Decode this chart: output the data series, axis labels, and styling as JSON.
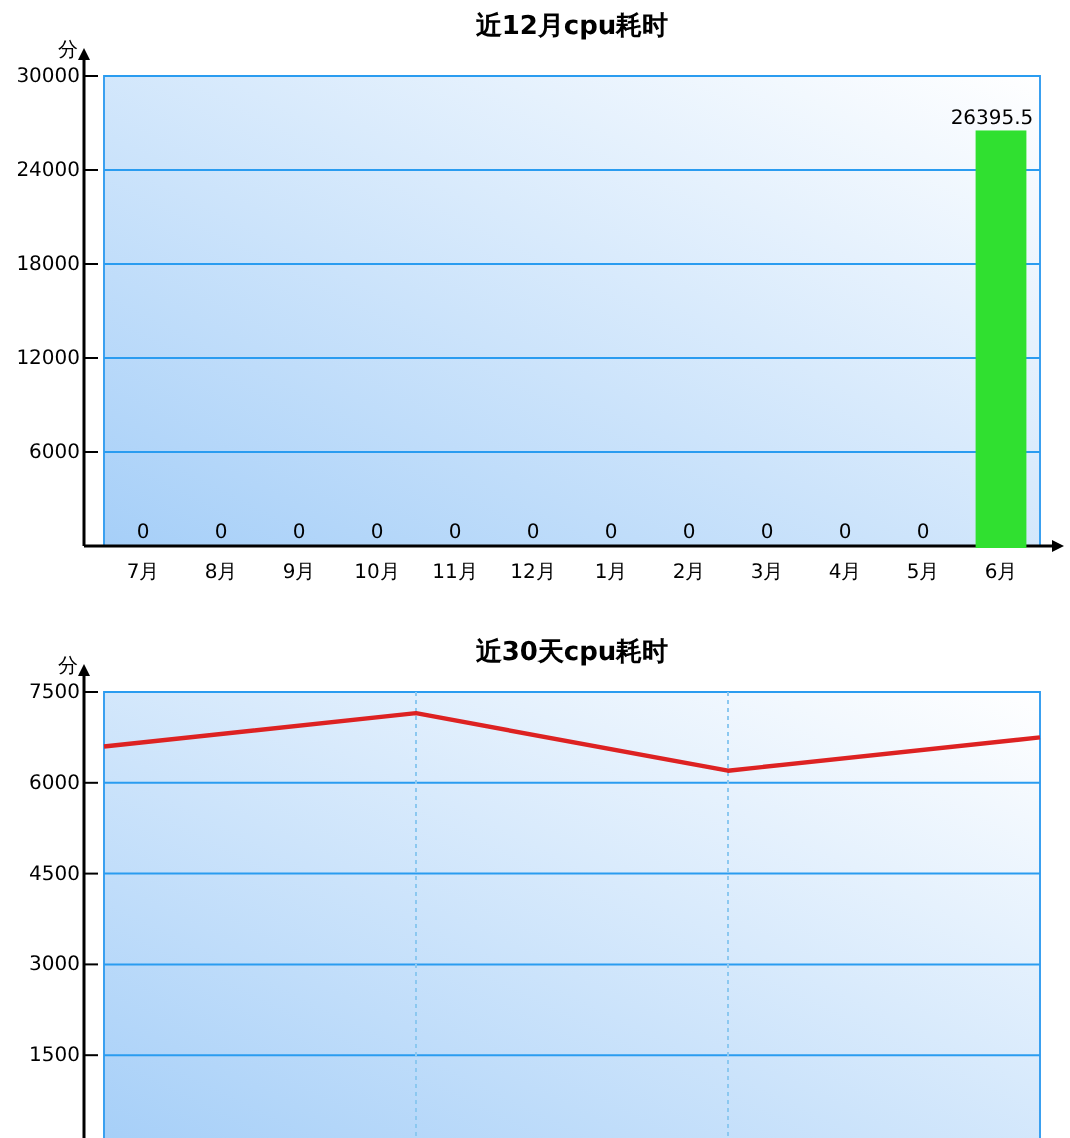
{
  "chart_data": [
    {
      "type": "bar",
      "title": "近12月cpu耗时",
      "ylabel": "分",
      "categories": [
        "7月",
        "8月",
        "9月",
        "10月",
        "11月",
        "12月",
        "1月",
        "2月",
        "3月",
        "4月",
        "5月",
        "6月"
      ],
      "values": [
        0,
        0,
        0,
        0,
        0,
        0,
        0,
        0,
        0,
        0,
        0,
        26395.5
      ],
      "colors": [
        "#e84c4c",
        "#f0f050",
        "#4848d0",
        "#50d050",
        "#f0c040",
        "#50c0c0",
        "#e040e0",
        "#905040",
        "#f07050",
        "#f09050",
        "#5050d0",
        "#30e030"
      ],
      "data_labels": true,
      "ylim": [
        0,
        30000
      ],
      "yticks": [
        6000,
        12000,
        18000,
        24000,
        30000
      ],
      "grid": "y"
    },
    {
      "type": "line",
      "title": "近30天cpu耗时",
      "ylabel": "分",
      "categories": [
        null,
        null,
        null,
        null
      ],
      "series": [
        {
          "color": "#dd2222",
          "values": [
            6600,
            7150,
            6200,
            6750
          ]
        }
      ],
      "ylim": [
        0,
        7500
      ],
      "yticks": [
        1500,
        3000,
        4500,
        6000,
        7500
      ],
      "grid": true,
      "marker": "none",
      "line_style": "solid"
    }
  ]
}
